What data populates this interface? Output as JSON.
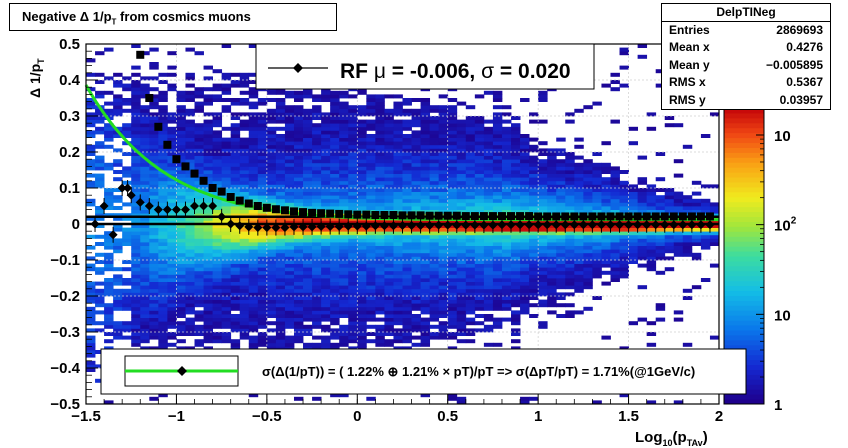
{
  "title": {
    "text_main": "Negative Δ 1/p",
    "text_sub": "T",
    "text_rest": " from cosmics muons"
  },
  "stats": {
    "name": "DelpTINeg",
    "rows": [
      {
        "label": "Entries",
        "value": "2869693"
      },
      {
        "label": "Mean x",
        "value": "0.4276"
      },
      {
        "label": "Mean y",
        "value": "−0.005895"
      },
      {
        "label": "RMS x",
        "value": "0.5367"
      },
      {
        "label": "RMS y",
        "value": "0.03957"
      }
    ]
  },
  "legend_top": {
    "label_prefix": "RF",
    "label_rest": " = -0.006, ",
    "label_sigma_value": " =   0.020",
    "mu_symbol": "μ",
    "sigma_symbol": "σ"
  },
  "legend_bottom": {
    "label": "σ(Δ(1/pT)) = ( 1.22% ⊕  1.21% × pT)/pT => σ(ΔpT/pT) =  1.71%(@1GeV/c)"
  },
  "colors": {
    "fit_line": "#22dd22",
    "marker": "#000000",
    "frame": "#000000",
    "grid": "#cfcfcf"
  },
  "chart_data": {
    "type": "heatmap",
    "xlabel_main": "Log",
    "xlabel_sub": "10",
    "xlabel_rest": "(p",
    "xlabel_sub2": "TAv",
    "xlabel_end": ")",
    "ylabel_main": "Δ 1/p",
    "ylabel_sub": "T",
    "xlim": [
      -1.5,
      2.0
    ],
    "ylim": [
      -0.5,
      0.5
    ],
    "x_ticks": [
      -1.5,
      -1,
      -0.5,
      0,
      0.5,
      1,
      1.5,
      2
    ],
    "x_tick_labels": [
      "−1.5",
      "−1",
      "−0.5",
      "0",
      "0.5",
      "1",
      "1.5",
      "2"
    ],
    "y_ticks": [
      -0.5,
      -0.4,
      -0.3,
      -0.2,
      -0.1,
      0,
      0.1,
      0.2,
      0.3,
      0.4,
      0.5
    ],
    "y_tick_labels": [
      "−0.5",
      "−0.4",
      "−0.3",
      "−0.2",
      "−0.1",
      "0",
      "0.1",
      "0.2",
      "0.3",
      "0.4",
      "0.5"
    ],
    "z_scale": "log",
    "zlim": [
      1,
      2000
    ],
    "z_tick_labels": [
      "1",
      "10",
      "10",
      "10"
    ],
    "z_tick_exponents": [
      "",
      "",
      "2",
      ""
    ],
    "grid": true,
    "mean_points": {
      "x": [
        -1.45,
        -1.4,
        -1.35,
        -1.3,
        -1.27,
        -1.25,
        -1.2,
        -1.15,
        -1.1,
        -1.05,
        -1.0,
        -0.95,
        -0.9,
        -0.85,
        -0.8,
        -0.75,
        -0.7,
        -0.65,
        -0.6,
        -0.55,
        -0.5,
        -0.45,
        -0.4,
        -0.35,
        -0.3,
        -0.25,
        -0.2,
        -0.15,
        -0.1,
        -0.05,
        0.0,
        0.05,
        0.1,
        0.15,
        0.2,
        0.25,
        0.3,
        0.35,
        0.4,
        0.45,
        0.5,
        0.55,
        0.6,
        0.65,
        0.7,
        0.75,
        0.8,
        0.85,
        0.9,
        0.95,
        1.0,
        1.05,
        1.1,
        1.15,
        1.2,
        1.25,
        1.3,
        1.35,
        1.4,
        1.45,
        1.5,
        1.55,
        1.6,
        1.65,
        1.7,
        1.75,
        1.8,
        1.85,
        1.9,
        1.95
      ],
      "y": [
        0.0,
        0.05,
        -0.03,
        0.1,
        0.1,
        0.08,
        0.06,
        0.05,
        0.04,
        0.04,
        0.04,
        0.04,
        0.05,
        0.05,
        0.05,
        0.02,
        0.0,
        -0.005,
        -0.008,
        -0.01,
        -0.01,
        -0.01,
        -0.01,
        -0.008,
        -0.008,
        -0.008,
        -0.007,
        -0.007,
        -0.007,
        -0.006,
        -0.006,
        -0.006,
        -0.005,
        -0.005,
        -0.005,
        -0.004,
        -0.004,
        -0.004,
        -0.004,
        -0.003,
        -0.003,
        -0.003,
        -0.003,
        -0.003,
        -0.003,
        -0.003,
        -0.002,
        -0.002,
        -0.002,
        -0.002,
        -0.002,
        -0.002,
        -0.002,
        -0.002,
        -0.002,
        -0.002,
        -0.002,
        -0.002,
        -0.002,
        -0.002,
        -0.002,
        -0.002,
        -0.002,
        -0.002,
        -0.002,
        -0.002,
        -0.002,
        -0.002,
        -0.002,
        -0.002
      ]
    },
    "sigma_points": {
      "x": [
        -1.2,
        -1.15,
        -1.1,
        -1.05,
        -1.0,
        -0.95,
        -0.9,
        -0.85,
        -0.8,
        -0.75,
        -0.7,
        -0.65,
        -0.6,
        -0.55,
        -0.5,
        -0.45,
        -0.4,
        -0.35,
        -0.3,
        -0.25,
        -0.2,
        -0.15,
        -0.1,
        -0.05,
        0.0,
        0.05,
        0.1,
        0.15,
        0.2,
        0.25,
        0.3,
        0.35,
        0.4,
        0.45,
        0.5,
        0.55,
        0.6,
        0.65,
        0.7,
        0.75,
        0.8,
        0.85,
        0.9,
        0.95,
        1.0,
        1.05,
        1.1,
        1.15,
        1.2,
        1.25,
        1.3,
        1.35,
        1.4,
        1.45,
        1.5,
        1.55,
        1.6,
        1.65,
        1.7,
        1.75,
        1.8,
        1.85,
        1.9,
        1.95
      ],
      "y": [
        0.47,
        0.35,
        0.27,
        0.22,
        0.18,
        0.16,
        0.14,
        0.12,
        0.1,
        0.09,
        0.075,
        0.065,
        0.057,
        0.05,
        0.045,
        0.041,
        0.038,
        0.035,
        0.033,
        0.031,
        0.03,
        0.029,
        0.028,
        0.027,
        0.026,
        0.026,
        0.025,
        0.025,
        0.025,
        0.024,
        0.024,
        0.024,
        0.023,
        0.023,
        0.023,
        0.023,
        0.022,
        0.022,
        0.022,
        0.022,
        0.022,
        0.022,
        0.022,
        0.022,
        0.021,
        0.021,
        0.021,
        0.021,
        0.021,
        0.021,
        0.021,
        0.021,
        0.021,
        0.021,
        0.021,
        0.021,
        0.021,
        0.021,
        0.021,
        0.021,
        0.021,
        0.021,
        0.021,
        0.021
      ]
    },
    "fit": {
      "a_percent": 1.22,
      "b_percent": 1.21
    },
    "reference_lines_y": [
      0.0,
      0.02
    ]
  }
}
